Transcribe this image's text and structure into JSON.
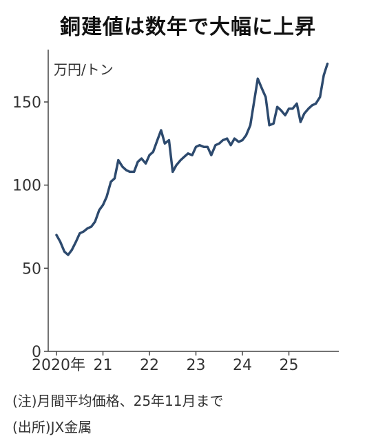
{
  "chart_data": {
    "type": "line",
    "title": "銅建値は数年で大幅に上昇",
    "unit_label": "万円/トン",
    "ylim": [
      0,
      180
    ],
    "yticks": [
      0,
      50,
      100,
      150
    ],
    "x_tick_labels": [
      {
        "x": 2020.0,
        "label": "2020年"
      },
      {
        "x": 2021.0,
        "label": "21"
      },
      {
        "x": 2022.0,
        "label": "22"
      },
      {
        "x": 2023.0,
        "label": "23"
      },
      {
        "x": 2024.0,
        "label": "24"
      },
      {
        "x": 2025.0,
        "label": "25"
      }
    ],
    "xlim": [
      2019.8,
      2026.0
    ],
    "grid": false,
    "series": [
      {
        "color": "#2d4a6e",
        "points": [
          [
            2020.0,
            70
          ],
          [
            2020.08,
            66
          ],
          [
            2020.17,
            60
          ],
          [
            2020.25,
            58
          ],
          [
            2020.33,
            61
          ],
          [
            2020.42,
            66
          ],
          [
            2020.5,
            71
          ],
          [
            2020.58,
            72
          ],
          [
            2020.67,
            74
          ],
          [
            2020.75,
            75
          ],
          [
            2020.83,
            78
          ],
          [
            2020.92,
            85
          ],
          [
            2021.0,
            88
          ],
          [
            2021.08,
            93
          ],
          [
            2021.17,
            102
          ],
          [
            2021.25,
            104
          ],
          [
            2021.33,
            115
          ],
          [
            2021.42,
            111
          ],
          [
            2021.5,
            109
          ],
          [
            2021.58,
            108
          ],
          [
            2021.67,
            108
          ],
          [
            2021.75,
            114
          ],
          [
            2021.83,
            116
          ],
          [
            2021.92,
            113
          ],
          [
            2022.0,
            118
          ],
          [
            2022.08,
            120
          ],
          [
            2022.17,
            127
          ],
          [
            2022.25,
            133
          ],
          [
            2022.33,
            125
          ],
          [
            2022.42,
            127
          ],
          [
            2022.5,
            108
          ],
          [
            2022.58,
            112
          ],
          [
            2022.67,
            115
          ],
          [
            2022.75,
            117
          ],
          [
            2022.83,
            119
          ],
          [
            2022.92,
            118
          ],
          [
            2023.0,
            123
          ],
          [
            2023.08,
            124
          ],
          [
            2023.17,
            123
          ],
          [
            2023.25,
            123
          ],
          [
            2023.33,
            118
          ],
          [
            2023.42,
            124
          ],
          [
            2023.5,
            125
          ],
          [
            2023.58,
            127
          ],
          [
            2023.67,
            128
          ],
          [
            2023.75,
            124
          ],
          [
            2023.83,
            128
          ],
          [
            2023.92,
            126
          ],
          [
            2024.0,
            127
          ],
          [
            2024.08,
            130
          ],
          [
            2024.17,
            136
          ],
          [
            2024.25,
            150
          ],
          [
            2024.33,
            164
          ],
          [
            2024.42,
            158
          ],
          [
            2024.5,
            153
          ],
          [
            2024.58,
            136
          ],
          [
            2024.67,
            137
          ],
          [
            2024.75,
            147
          ],
          [
            2024.83,
            145
          ],
          [
            2024.92,
            142
          ],
          [
            2025.0,
            146
          ],
          [
            2025.08,
            146
          ],
          [
            2025.17,
            149
          ],
          [
            2025.25,
            138
          ],
          [
            2025.33,
            143
          ],
          [
            2025.42,
            146
          ],
          [
            2025.5,
            148
          ],
          [
            2025.58,
            149
          ],
          [
            2025.67,
            153
          ],
          [
            2025.75,
            166
          ],
          [
            2025.83,
            173
          ]
        ]
      }
    ]
  },
  "notes": {
    "note_1": "(注)月間平均価格、25年11月まで",
    "note_2": "(出所)JX金属"
  }
}
